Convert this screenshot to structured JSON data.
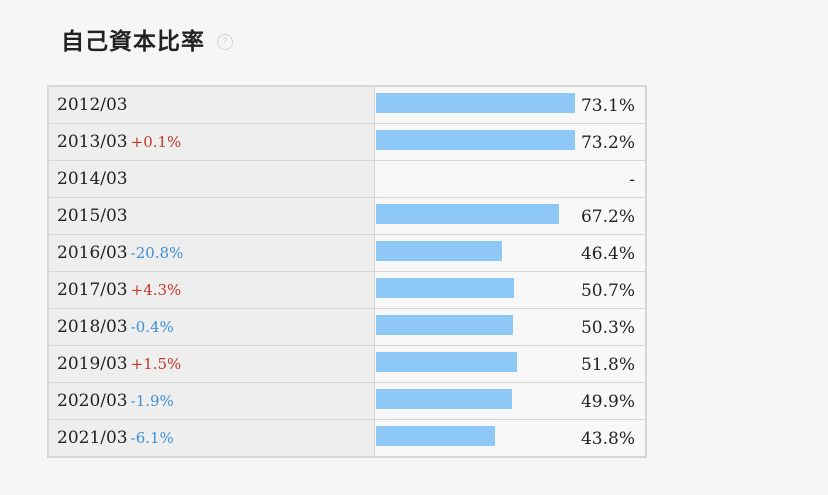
{
  "header": {
    "title": "自己資本比率",
    "help_icon": "?"
  },
  "chart_data": {
    "type": "bar",
    "title": "自己資本比率",
    "xlim": [
      0,
      100
    ],
    "rows": [
      {
        "period": "2012/03",
        "change": "",
        "direction": "",
        "value": 73.1,
        "display": "73.1%"
      },
      {
        "period": "2013/03",
        "change": "+0.1%",
        "direction": "up",
        "value": 73.2,
        "display": "73.2%"
      },
      {
        "period": "2014/03",
        "change": "",
        "direction": "",
        "value": null,
        "display": "-"
      },
      {
        "period": "2015/03",
        "change": "",
        "direction": "",
        "value": 67.2,
        "display": "67.2%"
      },
      {
        "period": "2016/03",
        "change": "-20.8%",
        "direction": "down",
        "value": 46.4,
        "display": "46.4%"
      },
      {
        "period": "2017/03",
        "change": "+4.3%",
        "direction": "up",
        "value": 50.7,
        "display": "50.7%"
      },
      {
        "period": "2018/03",
        "change": "-0.4%",
        "direction": "down",
        "value": 50.3,
        "display": "50.3%"
      },
      {
        "period": "2019/03",
        "change": "+1.5%",
        "direction": "up",
        "value": 51.8,
        "display": "51.8%"
      },
      {
        "period": "2020/03",
        "change": "-1.9%",
        "direction": "down",
        "value": 49.9,
        "display": "49.9%"
      },
      {
        "period": "2021/03",
        "change": "-6.1%",
        "direction": "down",
        "value": 43.8,
        "display": "43.8%"
      }
    ]
  },
  "colors": {
    "bar": "#8ec8f6",
    "up": "#c0392b",
    "down": "#3d8fd6"
  }
}
